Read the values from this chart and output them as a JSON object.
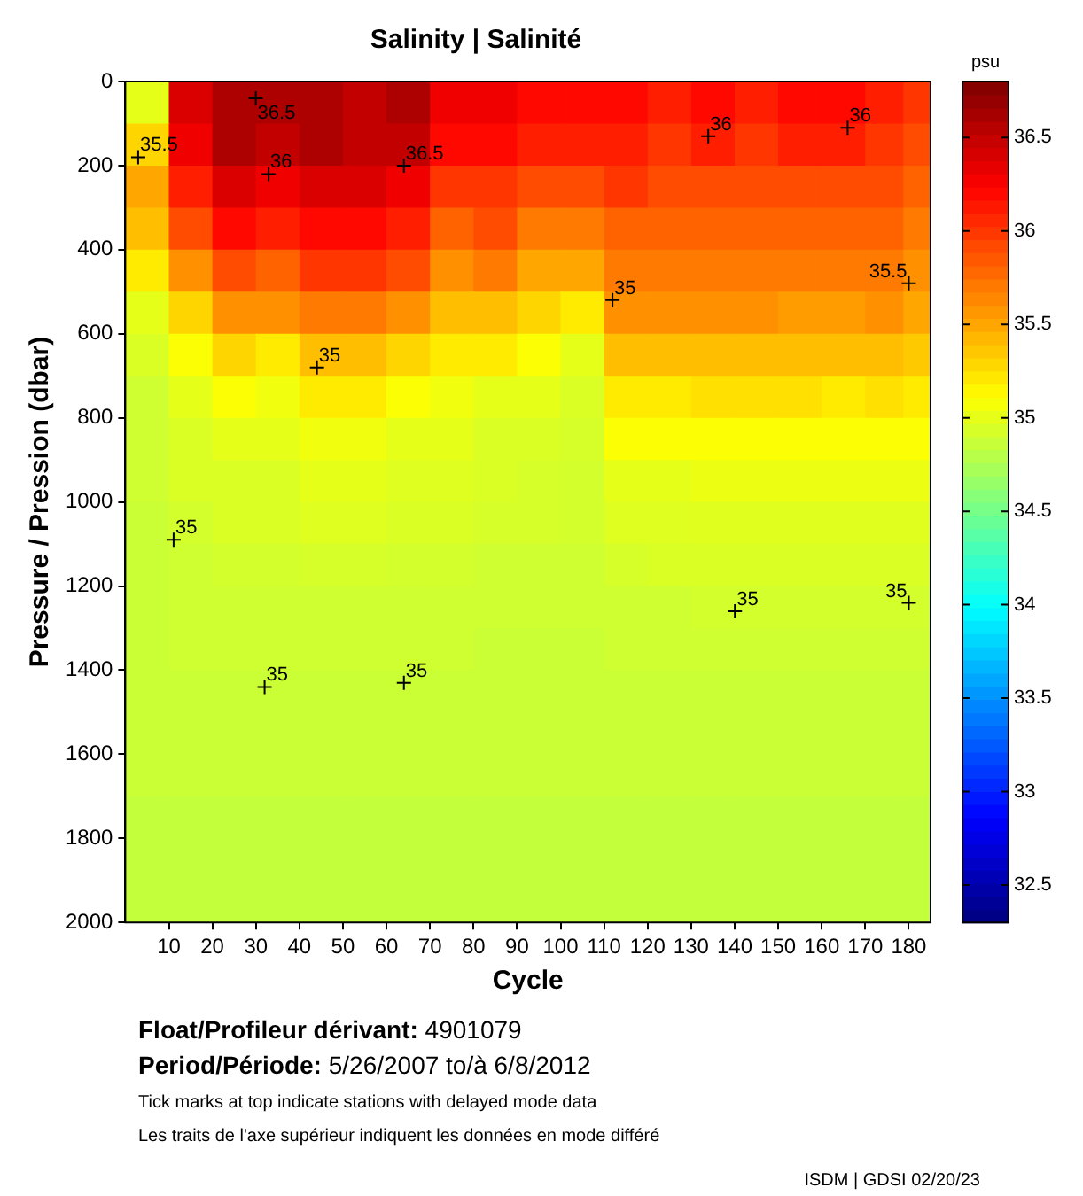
{
  "chart_data": {
    "type": "heatmap",
    "title": "Salinity | Salinité",
    "xlabel": "Cycle",
    "ylabel": "Pressure / Pression (dbar)",
    "clabel": "psu",
    "x": [
      5,
      15,
      25,
      35,
      45,
      55,
      65,
      75,
      85,
      95,
      105,
      115,
      125,
      135,
      145,
      155,
      165,
      175,
      182.5
    ],
    "xlim": [
      0,
      185
    ],
    "xticks": [
      10,
      20,
      30,
      40,
      50,
      60,
      70,
      80,
      90,
      100,
      110,
      120,
      130,
      140,
      150,
      160,
      170,
      180
    ],
    "ylim": [
      2000,
      0
    ],
    "yticks": [
      0,
      200,
      400,
      600,
      800,
      1000,
      1200,
      1400,
      1600,
      1800,
      2000
    ],
    "clim": [
      32.3,
      36.8
    ],
    "cticks": [
      32.5,
      33,
      33.5,
      34,
      34.5,
      35,
      35.5,
      36,
      36.5
    ],
    "cells": [
      [
        35.0,
        36.4,
        36.6,
        36.6,
        36.6,
        36.5,
        36.6,
        36.3,
        36.3,
        36.2,
        36.2,
        36.2,
        36.1,
        36.2,
        36.1,
        36.2,
        36.2,
        36.1,
        36.0
      ],
      [
        35.3,
        36.3,
        36.6,
        36.5,
        36.6,
        36.5,
        36.5,
        36.2,
        36.2,
        36.1,
        36.1,
        36.1,
        36.0,
        36.1,
        36.0,
        36.1,
        36.1,
        36.0,
        35.9
      ],
      [
        35.5,
        36.1,
        36.4,
        36.3,
        36.4,
        36.4,
        36.3,
        36.0,
        36.0,
        35.9,
        35.9,
        36.0,
        35.9,
        35.9,
        35.9,
        35.9,
        35.9,
        35.9,
        35.8
      ],
      [
        35.4,
        35.9,
        36.2,
        36.1,
        36.2,
        36.2,
        36.1,
        35.8,
        35.9,
        35.7,
        35.7,
        35.8,
        35.8,
        35.8,
        35.8,
        35.8,
        35.8,
        35.8,
        35.7
      ],
      [
        35.2,
        35.6,
        35.9,
        35.8,
        36.0,
        36.0,
        35.9,
        35.6,
        35.7,
        35.5,
        35.5,
        35.7,
        35.7,
        35.7,
        35.7,
        35.7,
        35.7,
        35.7,
        35.6
      ],
      [
        35.0,
        35.3,
        35.6,
        35.6,
        35.7,
        35.7,
        35.6,
        35.4,
        35.4,
        35.3,
        35.2,
        35.6,
        35.6,
        35.6,
        35.6,
        35.55,
        35.55,
        35.6,
        35.5
      ],
      [
        34.95,
        35.1,
        35.3,
        35.2,
        35.4,
        35.4,
        35.3,
        35.2,
        35.2,
        35.1,
        35.0,
        35.4,
        35.4,
        35.4,
        35.4,
        35.4,
        35.4,
        35.4,
        35.35
      ],
      [
        34.9,
        35.0,
        35.1,
        35.05,
        35.2,
        35.2,
        35.1,
        35.05,
        35.0,
        35.0,
        34.95,
        35.2,
        35.2,
        35.25,
        35.25,
        35.25,
        35.2,
        35.25,
        35.2
      ],
      [
        34.9,
        34.95,
        35.0,
        35.0,
        35.05,
        35.05,
        35.0,
        35.0,
        34.95,
        34.95,
        34.93,
        35.1,
        35.1,
        35.1,
        35.1,
        35.1,
        35.1,
        35.1,
        35.1
      ],
      [
        34.9,
        34.95,
        34.95,
        34.95,
        35.0,
        35.0,
        34.97,
        34.97,
        34.95,
        34.93,
        34.92,
        35.0,
        35.0,
        35.03,
        35.03,
        35.03,
        35.03,
        35.03,
        35.03
      ],
      [
        34.88,
        34.92,
        34.95,
        34.95,
        34.97,
        34.97,
        34.95,
        34.95,
        34.93,
        34.93,
        34.92,
        34.97,
        34.97,
        34.98,
        34.98,
        34.98,
        34.98,
        34.98,
        34.98
      ],
      [
        34.88,
        34.9,
        34.92,
        34.92,
        34.93,
        34.93,
        34.92,
        34.92,
        34.9,
        34.9,
        34.9,
        34.93,
        34.95,
        34.95,
        34.95,
        34.95,
        34.95,
        34.95,
        34.95
      ],
      [
        34.88,
        34.9,
        34.9,
        34.9,
        34.9,
        34.9,
        34.9,
        34.9,
        34.9,
        34.9,
        34.9,
        34.9,
        34.9,
        34.92,
        34.92,
        34.92,
        34.92,
        34.92,
        34.92
      ],
      [
        34.88,
        34.9,
        34.9,
        34.9,
        34.9,
        34.9,
        34.9,
        34.9,
        34.88,
        34.88,
        34.88,
        34.9,
        34.9,
        34.9,
        34.9,
        34.9,
        34.9,
        34.9,
        34.9
      ],
      [
        34.88,
        34.88,
        34.88,
        34.88,
        34.88,
        34.88,
        34.88,
        34.88,
        34.88,
        34.88,
        34.88,
        34.88,
        34.88,
        34.88,
        34.88,
        34.88,
        34.88,
        34.88,
        34.88
      ],
      [
        34.88,
        34.88,
        34.88,
        34.88,
        34.88,
        34.88,
        34.88,
        34.88,
        34.88,
        34.88,
        34.88,
        34.88,
        34.88,
        34.88,
        34.88,
        34.88,
        34.88,
        34.88,
        34.88
      ],
      [
        34.88,
        34.88,
        34.88,
        34.88,
        34.88,
        34.88,
        34.88,
        34.88,
        34.88,
        34.88,
        34.88,
        34.88,
        34.88,
        34.88,
        34.88,
        34.88,
        34.88,
        34.88,
        34.88
      ],
      [
        34.85,
        34.85,
        34.85,
        34.85,
        34.85,
        34.85,
        34.85,
        34.85,
        34.85,
        34.85,
        34.85,
        34.85,
        34.85,
        34.85,
        34.85,
        34.85,
        34.85,
        34.85,
        34.85
      ],
      [
        34.85,
        34.85,
        34.85,
        34.85,
        34.85,
        34.85,
        34.85,
        34.85,
        34.85,
        34.85,
        34.85,
        34.85,
        34.85,
        34.85,
        34.85,
        34.85,
        34.85,
        34.85,
        34.85
      ],
      [
        34.85,
        34.85,
        34.85,
        34.85,
        34.85,
        34.85,
        34.85,
        34.85,
        34.85,
        34.85,
        34.85,
        34.85,
        34.85,
        34.85,
        34.85,
        34.85,
        34.85,
        34.85,
        34.85
      ]
    ],
    "annotations": [
      "35.5",
      "36.5",
      "36",
      "36.5",
      "36",
      "36",
      "35.5",
      "35",
      "35",
      "35",
      "35",
      "35",
      "35",
      "35",
      "Float/Profileur dérivant: 4901079",
      "Period/Période: 5/26/2007 to/à 6/8/2012",
      "Tick marks at top indicate stations with delayed mode data",
      "Les traits de l'axe supérieur indiquent les données en mode différé",
      "ISDM | GDSI 02/20/23"
    ]
  }
}
